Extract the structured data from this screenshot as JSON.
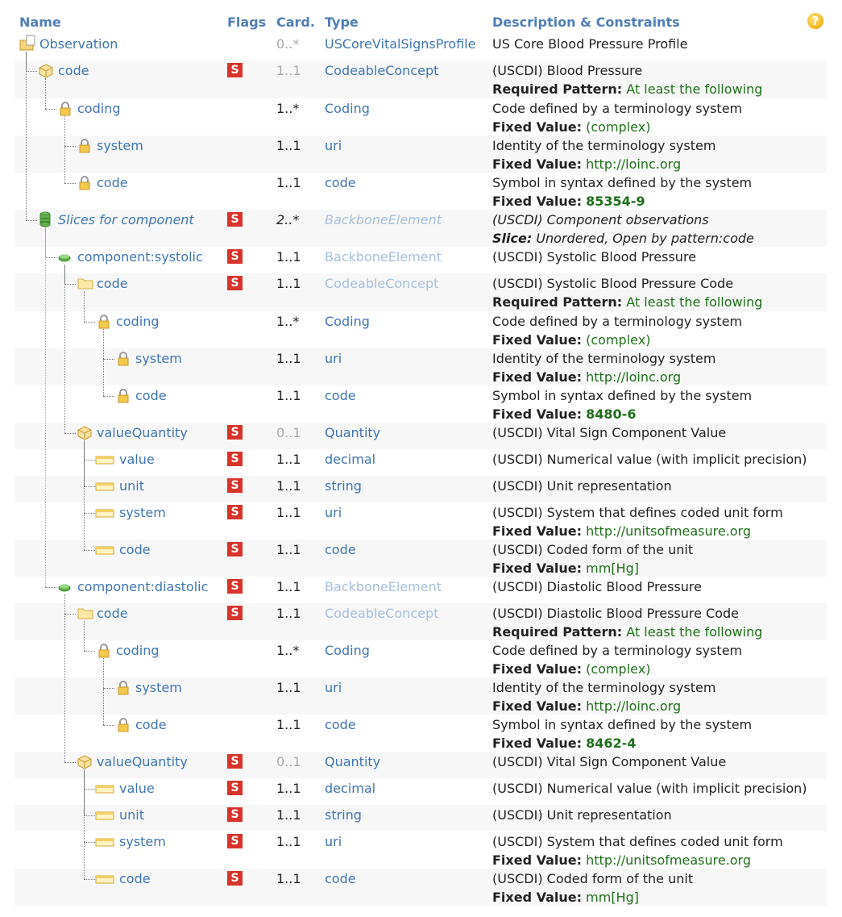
{
  "header": {
    "name": "Name",
    "flags": "Flags",
    "card": "Card.",
    "type": "Type",
    "desc": "Description & Constraints",
    "help": "?"
  },
  "rows": [
    {
      "name": "Observation",
      "depth": 0,
      "icon": "folder-page",
      "flag": "",
      "card": "0..*",
      "card_dim": true,
      "type": "USCoreVitalSignsProfile",
      "type_dim": false,
      "desc1": "US Core Blood Pressure Profile",
      "desc2_label": "",
      "desc2_value": "",
      "h": 33
    },
    {
      "name": "code",
      "depth": 1,
      "icon": "cube",
      "flag": "S",
      "card": "1..1",
      "card_dim": true,
      "type": "CodeableConcept",
      "type_dim": false,
      "desc1": "(USCDI) Blood Pressure",
      "desc2_label": "Required Pattern:",
      "desc2_value": "At least the following",
      "h": 47
    },
    {
      "name": "coding",
      "depth": 2,
      "icon": "lock",
      "flag": "",
      "card": "1..*",
      "card_dim": false,
      "type": "Coding",
      "type_dim": false,
      "desc1": "Code defined by a terminology system",
      "desc2_label": "Fixed Value:",
      "desc2_value": "(complex)",
      "h": 46
    },
    {
      "name": "system",
      "depth": 3,
      "icon": "lock",
      "flag": "",
      "card": "1..1",
      "card_dim": false,
      "type": "uri",
      "type_dim": false,
      "desc1": "Identity of the terminology system",
      "desc2_label": "Fixed Value:",
      "desc2_value": "http://loinc.org",
      "h": 46
    },
    {
      "name": "code",
      "depth": 3,
      "icon": "lock",
      "flag": "",
      "card": "1..1",
      "card_dim": false,
      "type": "code",
      "type_dim": false,
      "desc1": "Symbol in syntax defined by the system",
      "desc2_label": "Fixed Value:",
      "desc2_value": "85354-9",
      "h": 46
    },
    {
      "name": "Slices for component",
      "depth": 1,
      "icon": "slice",
      "flag": "S",
      "card": "2..*",
      "card_dim": false,
      "type": "BackboneElement",
      "type_dim": true,
      "desc1": "(USCDI) Component observations",
      "desc2_label": "Slice:",
      "desc2_value": "Unordered, Open by pattern:code",
      "h": 46,
      "italic": true
    },
    {
      "name": "component:systolic",
      "depth": 2,
      "icon": "green-dot",
      "flag": "S",
      "card": "1..1",
      "card_dim": false,
      "type": "BackboneElement",
      "type_dim": true,
      "desc1": "(USCDI) Systolic Blood Pressure",
      "desc2_label": "",
      "desc2_value": "",
      "h": 33
    },
    {
      "name": "code",
      "depth": 3,
      "icon": "folder",
      "flag": "S",
      "card": "1..1",
      "card_dim": false,
      "type": "CodeableConcept",
      "type_dim": true,
      "desc1": "(USCDI) Systolic Blood Pressure Code",
      "desc2_label": "Required Pattern:",
      "desc2_value": "At least the following",
      "h": 47
    },
    {
      "name": "coding",
      "depth": 4,
      "icon": "lock",
      "flag": "",
      "card": "1..*",
      "card_dim": false,
      "type": "Coding",
      "type_dim": false,
      "desc1": "Code defined by a terminology system",
      "desc2_label": "Fixed Value:",
      "desc2_value": "(complex)",
      "h": 46
    },
    {
      "name": "system",
      "depth": 5,
      "icon": "lock",
      "flag": "",
      "card": "1..1",
      "card_dim": false,
      "type": "uri",
      "type_dim": false,
      "desc1": "Identity of the terminology system",
      "desc2_label": "Fixed Value:",
      "desc2_value": "http://loinc.org",
      "h": 46
    },
    {
      "name": "code",
      "depth": 5,
      "icon": "lock",
      "flag": "",
      "card": "1..1",
      "card_dim": false,
      "type": "code",
      "type_dim": false,
      "desc1": "Symbol in syntax defined by the system",
      "desc2_label": "Fixed Value:",
      "desc2_value": "8480-6",
      "h": 46
    },
    {
      "name": "valueQuantity",
      "depth": 3,
      "icon": "cube",
      "flag": "S",
      "card": "0..1",
      "card_dim": true,
      "type": "Quantity",
      "type_dim": false,
      "desc1": "(USCDI) Vital Sign Component Value",
      "desc2_label": "",
      "desc2_value": "",
      "h": 33
    },
    {
      "name": "value",
      "depth": 4,
      "icon": "prim",
      "flag": "S",
      "card": "1..1",
      "card_dim": false,
      "type": "decimal",
      "type_dim": false,
      "desc1": "(USCDI) Numerical value (with implicit precision)",
      "desc2_label": "",
      "desc2_value": "",
      "h": 33
    },
    {
      "name": "unit",
      "depth": 4,
      "icon": "prim",
      "flag": "S",
      "card": "1..1",
      "card_dim": false,
      "type": "string",
      "type_dim": false,
      "desc1": "(USCDI) Unit representation",
      "desc2_label": "",
      "desc2_value": "",
      "h": 33
    },
    {
      "name": "system",
      "depth": 4,
      "icon": "prim",
      "flag": "S",
      "card": "1..1",
      "card_dim": false,
      "type": "uri",
      "type_dim": false,
      "desc1": "(USCDI) System that defines coded unit form",
      "desc2_label": "Fixed Value:",
      "desc2_value": "http://unitsofmeasure.org",
      "h": 46
    },
    {
      "name": "code",
      "depth": 4,
      "icon": "prim",
      "flag": "S",
      "card": "1..1",
      "card_dim": false,
      "type": "code",
      "type_dim": false,
      "desc1": "(USCDI) Coded form of the unit",
      "desc2_label": "Fixed Value:",
      "desc2_value": "mm[Hg]",
      "h": 46
    },
    {
      "name": "component:diastolic",
      "depth": 2,
      "icon": "green-dot",
      "flag": "S",
      "card": "1..1",
      "card_dim": false,
      "type": "BackboneElement",
      "type_dim": true,
      "desc1": "(USCDI) Diastolic Blood Pressure",
      "desc2_label": "",
      "desc2_value": "",
      "h": 33
    },
    {
      "name": "code",
      "depth": 3,
      "icon": "folder",
      "flag": "S",
      "card": "1..1",
      "card_dim": false,
      "type": "CodeableConcept",
      "type_dim": true,
      "desc1": "(USCDI) Diastolic Blood Pressure Code",
      "desc2_label": "Required Pattern:",
      "desc2_value": "At least the following",
      "h": 46
    },
    {
      "name": "coding",
      "depth": 4,
      "icon": "lock",
      "flag": "",
      "card": "1..*",
      "card_dim": false,
      "type": "Coding",
      "type_dim": false,
      "desc1": "Code defined by a terminology system",
      "desc2_label": "Fixed Value:",
      "desc2_value": "(complex)",
      "h": 46
    },
    {
      "name": "system",
      "depth": 5,
      "icon": "lock",
      "flag": "",
      "card": "1..1",
      "card_dim": false,
      "type": "uri",
      "type_dim": false,
      "desc1": "Identity of the terminology system",
      "desc2_label": "Fixed Value:",
      "desc2_value": "http://loinc.org",
      "h": 46
    },
    {
      "name": "code",
      "depth": 5,
      "icon": "lock",
      "flag": "",
      "card": "1..1",
      "card_dim": false,
      "type": "code",
      "type_dim": false,
      "desc1": "Symbol in syntax defined by the system",
      "desc2_label": "Fixed Value:",
      "desc2_value": "8462-4",
      "h": 46
    },
    {
      "name": "valueQuantity",
      "depth": 3,
      "icon": "cube",
      "flag": "S",
      "card": "0..1",
      "card_dim": true,
      "type": "Quantity",
      "type_dim": false,
      "desc1": "(USCDI) Vital Sign Component Value",
      "desc2_label": "",
      "desc2_value": "",
      "h": 33
    },
    {
      "name": "value",
      "depth": 4,
      "icon": "prim",
      "flag": "S",
      "card": "1..1",
      "card_dim": false,
      "type": "decimal",
      "type_dim": false,
      "desc1": "(USCDI) Numerical value (with implicit precision)",
      "desc2_label": "",
      "desc2_value": "",
      "h": 33
    },
    {
      "name": "unit",
      "depth": 4,
      "icon": "prim",
      "flag": "S",
      "card": "1..1",
      "card_dim": false,
      "type": "string",
      "type_dim": false,
      "desc1": "(USCDI) Unit representation",
      "desc2_label": "",
      "desc2_value": "",
      "h": 33
    },
    {
      "name": "system",
      "depth": 4,
      "icon": "prim",
      "flag": "S",
      "card": "1..1",
      "card_dim": false,
      "type": "uri",
      "type_dim": false,
      "desc1": "(USCDI) System that defines coded unit form",
      "desc2_label": "Fixed Value:",
      "desc2_value": "http://unitsofmeasure.org",
      "h": 46
    },
    {
      "name": "code",
      "depth": 4,
      "icon": "prim",
      "flag": "S",
      "card": "1..1",
      "card_dim": false,
      "type": "code",
      "type_dim": false,
      "desc1": "(USCDI) Coded form of the unit",
      "desc2_label": "Fixed Value:",
      "desc2_value": "mm[Hg]",
      "h": 46
    }
  ],
  "colors": {
    "link": "#3f75b5",
    "header": "#4f7fb6",
    "flag": "#d8342a",
    "fixed": "#1f6f1a",
    "alt_row": "#f7f7f7"
  }
}
